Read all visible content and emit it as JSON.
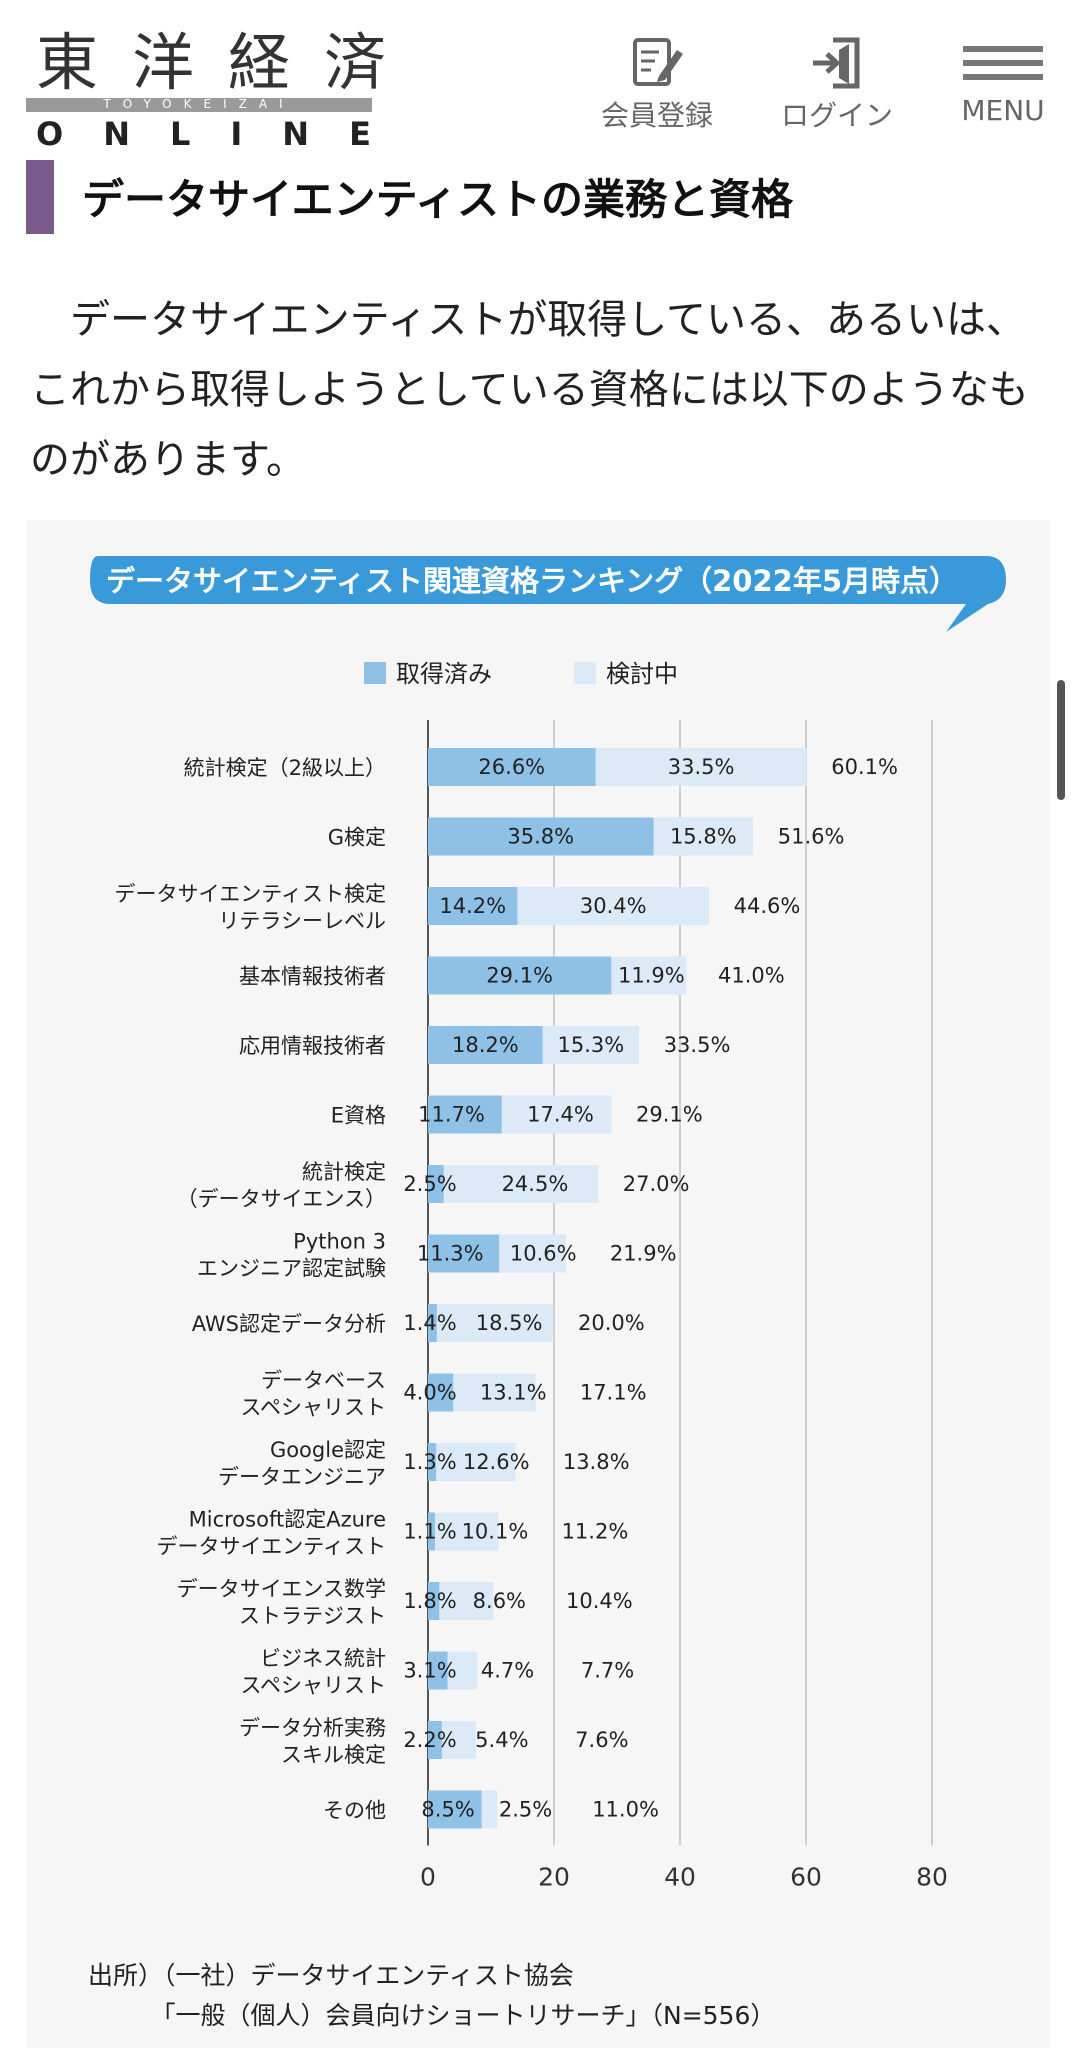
{
  "site": {
    "logo_kanji": "東洋経済",
    "logo_roman": "TOYOKEIZAI",
    "logo_online": "ONLINE"
  },
  "nav": {
    "register_label": "会員登録",
    "login_label": "ログイン",
    "menu_label": "MENU"
  },
  "article": {
    "section_title": "データサイエンティストの業務と資格",
    "paragraph": "　データサイエンティストが取得している、あるいは、これから取得しようとしている資格には以下のようなものがあります。"
  },
  "colors": {
    "accent_purple": "#7a5a8c",
    "banner_blue": "#3a9ad9",
    "acquired": "#8fc0e6",
    "considering": "#dbeaf6"
  },
  "icons": [
    "pencil-note-icon",
    "login-door-icon",
    "hamburger-icon"
  ],
  "chart_data": {
    "type": "bar",
    "orientation": "horizontal",
    "stacked": true,
    "title": "データサイエンティスト関連資格ランキング（2022年5月時点）",
    "legend": [
      "取得済み",
      "検討中"
    ],
    "legend_position": "top",
    "categories": [
      [
        "統計検定（2級以上）"
      ],
      [
        "G検定"
      ],
      [
        "データサイエンティスト検定",
        "リテラシーレベル"
      ],
      [
        "基本情報技術者"
      ],
      [
        "応用情報技術者"
      ],
      [
        "E資格"
      ],
      [
        "統計検定",
        "（データサイエンス）"
      ],
      [
        "Python 3",
        "エンジニア認定試験"
      ],
      [
        "AWS認定データ分析"
      ],
      [
        "データベース",
        "スペシャリスト"
      ],
      [
        "Google認定",
        "データエンジニア"
      ],
      [
        "Microsoft認定Azure",
        "データサイエンティスト"
      ],
      [
        "データサイエンス数学",
        "ストラテジスト"
      ],
      [
        "ビジネス統計",
        "スペシャリスト"
      ],
      [
        "データ分析実務",
        "スキル検定"
      ],
      [
        "その他"
      ]
    ],
    "series": [
      {
        "name": "取得済み",
        "values": [
          26.6,
          35.8,
          14.2,
          29.1,
          18.2,
          11.7,
          2.5,
          11.3,
          1.4,
          4.0,
          1.3,
          1.1,
          1.8,
          3.1,
          2.2,
          8.5
        ]
      },
      {
        "name": "検討中",
        "values": [
          33.5,
          15.8,
          30.4,
          11.9,
          15.3,
          17.4,
          24.5,
          10.6,
          18.5,
          13.1,
          12.6,
          10.1,
          8.6,
          4.7,
          5.4,
          2.5
        ]
      }
    ],
    "totals": [
      60.1,
      51.6,
      44.6,
      41.0,
      33.5,
      29.1,
      27.0,
      21.9,
      20.0,
      17.1,
      13.8,
      11.2,
      10.4,
      7.7,
      7.6,
      11.0
    ],
    "xlim": [
      0,
      80
    ],
    "xticks": [
      0,
      20,
      40,
      60,
      80
    ],
    "grid": true,
    "source_lines": [
      "出所）（一社）データサイエンティスト協会",
      "　　　「一般（個人）会員向けショートリサーチ」（N=556）"
    ]
  }
}
